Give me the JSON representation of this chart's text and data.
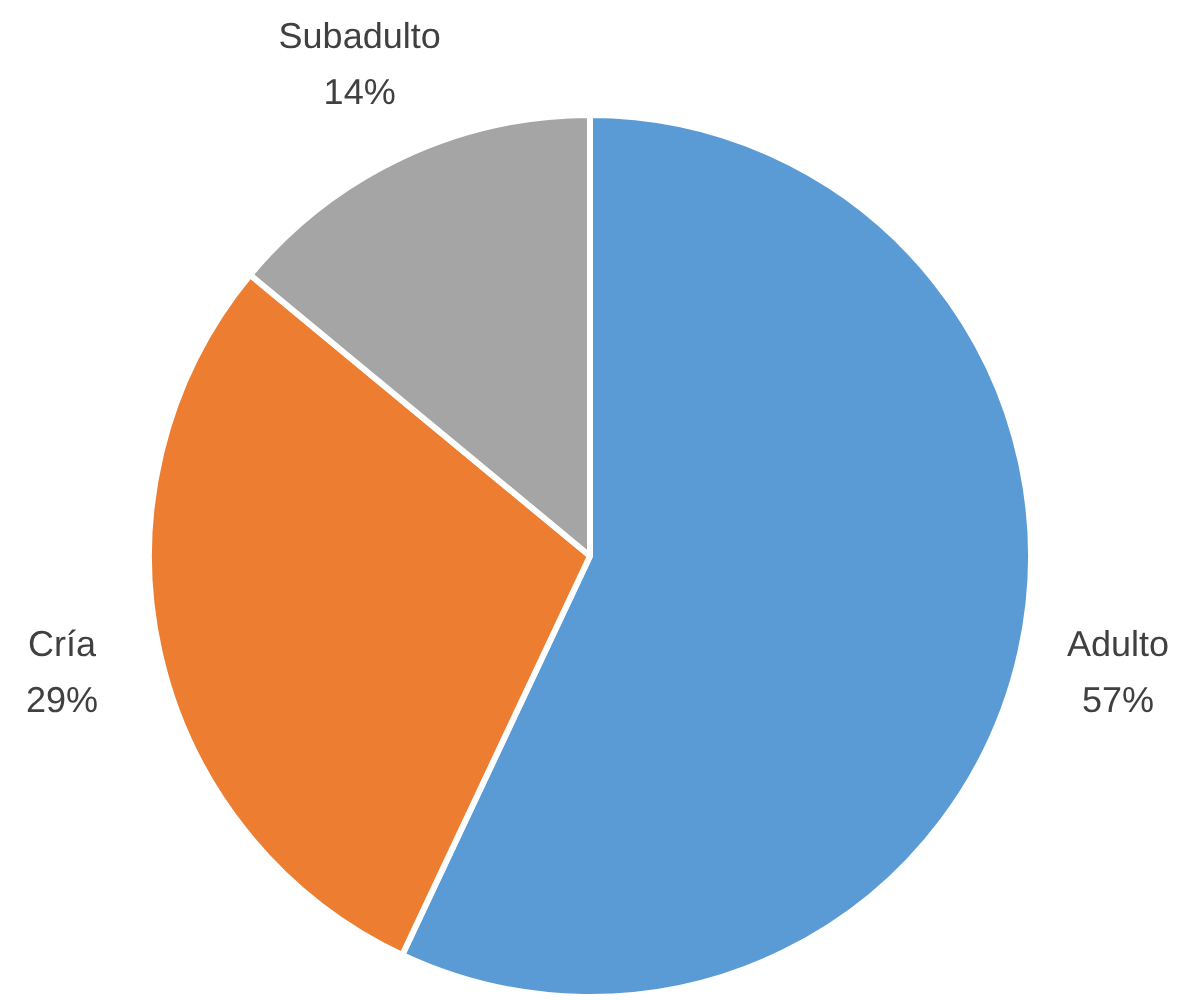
{
  "chart_data": {
    "type": "pie",
    "categories": [
      "Adulto",
      "Cría",
      "Subadulto"
    ],
    "values": [
      57,
      29,
      14
    ],
    "colors": [
      "#5b9bd5",
      "#ed7d31",
      "#a5a5a5"
    ],
    "value_labels": [
      "57%",
      "29%",
      "14%"
    ],
    "legend": false
  }
}
